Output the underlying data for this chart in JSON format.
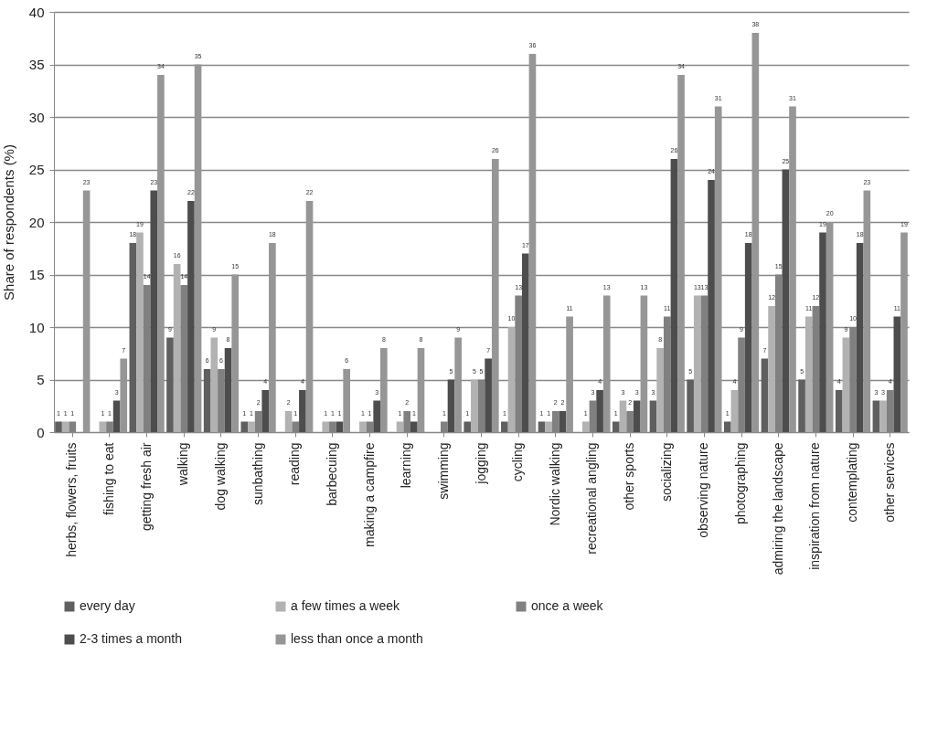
{
  "chart_data": {
    "type": "bar",
    "ylabel": "Share of respondents (%)",
    "categories": [
      "herbs, flowers, fruits",
      "fishing to eat",
      "getting fresh air",
      "walking",
      "dog walking",
      "sunbathing",
      "reading",
      "barbecuing",
      "making a campfire",
      "learning",
      "swimming",
      "jogging",
      "cycling",
      "Nordic walking",
      "recreational angling",
      "other sports",
      "socializing",
      "observing nature",
      "photographing",
      "admiring the landscape",
      "inspiration from nature",
      "contemplating",
      "other services"
    ],
    "series": [
      {
        "name": "every day",
        "color": "#5f5f5f",
        "values": [
          1,
          0,
          18,
          9,
          6,
          1,
          0,
          0,
          0,
          0,
          0,
          1,
          1,
          1,
          0,
          1,
          3,
          5,
          1,
          7,
          5,
          4,
          3
        ],
        "value_labels": [
          "1",
          null,
          "18",
          "9",
          "6",
          "1",
          null,
          null,
          null,
          null,
          null,
          "1",
          "1",
          "1",
          null,
          "1",
          "3",
          "5",
          "1",
          "7",
          "5",
          "4",
          "3"
        ]
      },
      {
        "name": "a few times a week",
        "color": "#b2b2b2",
        "values": [
          1,
          1,
          19,
          16,
          9,
          1,
          2,
          1,
          1,
          1,
          0,
          5,
          10,
          1,
          1,
          3,
          8,
          13,
          4,
          12,
          11,
          9,
          3
        ],
        "value_labels": [
          "1",
          "1",
          "19",
          "16",
          "9",
          "1",
          "2",
          "1",
          "1",
          "1",
          null,
          "5",
          "10",
          "1",
          "1",
          "3",
          "8",
          "13",
          "4",
          "12",
          "11",
          "9",
          "3"
        ]
      },
      {
        "name": "once a week",
        "color": "#808080",
        "values": [
          1,
          1,
          14,
          14,
          6,
          2,
          1,
          1,
          1,
          2,
          1,
          5,
          13,
          2,
          3,
          2,
          11,
          13,
          9,
          15,
          12,
          10,
          4
        ],
        "value_labels": [
          "1",
          "1",
          "14",
          "14",
          "6",
          "2",
          "1",
          "1",
          "1",
          "2",
          "1",
          "5",
          "13",
          "2",
          "3",
          "2",
          "11",
          "13",
          "9",
          "15",
          "12",
          "10",
          "4"
        ]
      },
      {
        "name": "2-3 times a month",
        "color": "#4d4d4d",
        "values": [
          0,
          3,
          23,
          22,
          8,
          4,
          4,
          1,
          3,
          1,
          5,
          7,
          17,
          2,
          4,
          3,
          26,
          24,
          18,
          25,
          19,
          18,
          11
        ],
        "value_labels": [
          null,
          "3",
          "23",
          "22",
          "8",
          "4",
          "4",
          "1",
          "3",
          "1",
          "5",
          "7",
          "17",
          "2",
          "4",
          "3",
          "26",
          "24",
          "18",
          "25",
          "19",
          "18",
          "11"
        ]
      },
      {
        "name": "less than once a month",
        "color": "#969696",
        "values": [
          23,
          7,
          34,
          35,
          15,
          18,
          22,
          6,
          8,
          8,
          9,
          26,
          36,
          11,
          13,
          13,
          34,
          31,
          38,
          31,
          20,
          23,
          19
        ],
        "value_labels": [
          "23",
          "7",
          "34",
          "35",
          "15",
          "18",
          "22",
          "6",
          "8",
          "8",
          "9",
          "26",
          "36",
          "11",
          "13",
          "13",
          "34",
          "31",
          "38",
          "31",
          "20",
          "23",
          "19"
        ]
      }
    ],
    "ylim": [
      0,
      40
    ],
    "yticks": [
      0,
      5,
      10,
      15,
      20,
      25,
      30,
      35,
      40
    ],
    "grid": "y",
    "legend": "bottom"
  }
}
